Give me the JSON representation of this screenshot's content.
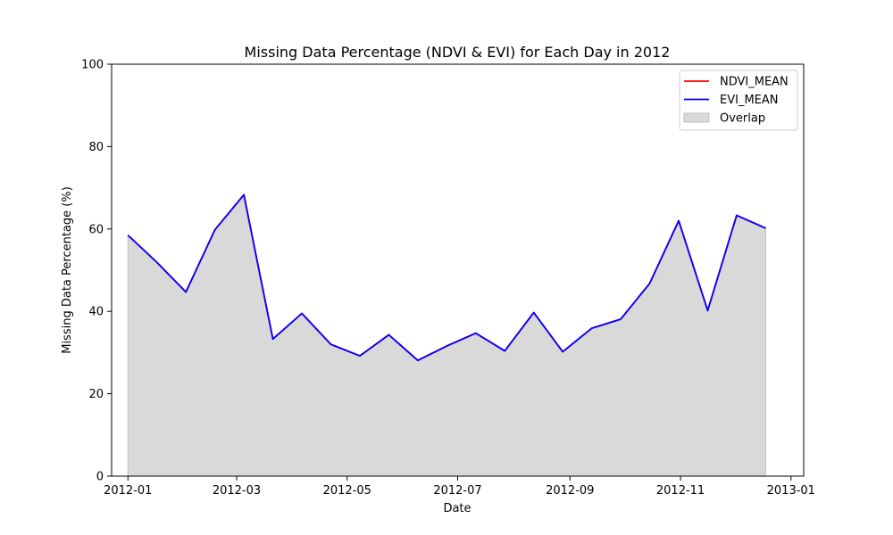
{
  "chart_data": {
    "type": "line",
    "title": "Missing Data Percentage (NDVI & EVI) for Each Day in 2012",
    "xlabel": "Date",
    "ylabel": "Missing Data Percentage (%)",
    "ylim": [
      0,
      100
    ],
    "xlim": [
      "2011-12-23",
      "2013-01-08"
    ],
    "x_ticks": [
      "2012-01-01",
      "2012-03-01",
      "2012-05-01",
      "2012-07-01",
      "2012-09-01",
      "2012-11-01",
      "2013-01-01"
    ],
    "x_tick_labels": [
      "2012-01",
      "2012-03",
      "2012-05",
      "2012-07",
      "2012-09",
      "2012-11",
      "2013-01"
    ],
    "y_ticks": [
      0,
      20,
      40,
      60,
      80,
      100
    ],
    "y_tick_labels": [
      "0",
      "20",
      "40",
      "60",
      "80",
      "100"
    ],
    "grid": false,
    "legend_position": "top-right",
    "x": [
      "2012-01-01",
      "2012-01-17",
      "2012-02-02",
      "2012-02-18",
      "2012-03-05",
      "2012-03-21",
      "2012-04-06",
      "2012-04-22",
      "2012-05-08",
      "2012-05-24",
      "2012-06-09",
      "2012-06-25",
      "2012-07-11",
      "2012-07-27",
      "2012-08-12",
      "2012-08-28",
      "2012-09-13",
      "2012-09-29",
      "2012-10-15",
      "2012-10-31",
      "2012-11-16",
      "2012-12-02",
      "2012-12-18"
    ],
    "series": [
      {
        "name": "NDVI_MEAN",
        "color": "#ff0000",
        "values": [
          58.5,
          51.9,
          44.7,
          59.8,
          68.3,
          33.3,
          39.5,
          32.0,
          29.2,
          34.3,
          28.1,
          31.6,
          34.7,
          30.4,
          39.7,
          30.2,
          35.9,
          38.1,
          46.8,
          62.0,
          40.2,
          63.3,
          60.2
        ]
      },
      {
        "name": "EVI_MEAN",
        "color": "#0000ff",
        "values": [
          58.5,
          51.9,
          44.7,
          59.8,
          68.3,
          33.3,
          39.5,
          32.0,
          29.2,
          34.3,
          28.1,
          31.6,
          34.7,
          30.4,
          39.7,
          30.2,
          35.9,
          38.1,
          46.8,
          62.0,
          40.2,
          63.3,
          60.2
        ]
      }
    ],
    "overlap": {
      "name": "Overlap",
      "color": "#d9d9d9"
    },
    "legend": [
      "NDVI_MEAN",
      "EVI_MEAN",
      "Overlap"
    ]
  }
}
